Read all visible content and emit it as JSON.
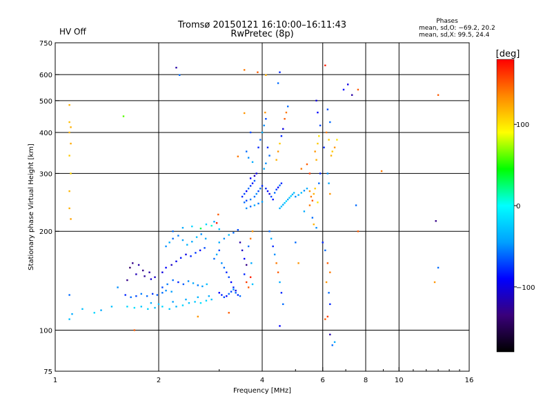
{
  "status": {
    "hv": "HV Off",
    "hv_color": "#e00000"
  },
  "header": {
    "title_line1": "Tromsø 20150121 16:10:00–16:11:43",
    "title_line2": "RwPretec (8p)"
  },
  "stats": {
    "label": "Phases",
    "line_o": "mean, sd,O: −69.2, 20.2",
    "line_x": "mean, sd,X:  99.5, 24.4"
  },
  "colorbar": {
    "unit": "[deg]",
    "ticks": [
      {
        "value": 100,
        "label": "100"
      },
      {
        "value": 0,
        "label": "0"
      },
      {
        "value": -100,
        "label": "−100"
      }
    ],
    "range": [
      -180,
      180
    ],
    "stops": [
      "#000000",
      "#3a007a",
      "#0000ff",
      "#00a0ff",
      "#00ffff",
      "#00ff00",
      "#ffff00",
      "#ff8800",
      "#ff0000"
    ]
  },
  "chart_data": {
    "type": "scatter",
    "title": "Tromsø 20150121 16:10:00–16:11:43",
    "subtitle": "RwPretec (8p)",
    "xlabel": "Frequency [MHz]",
    "ylabel": "Stationary phase Virtual Height [km]",
    "xscale": "log",
    "yscale": "log",
    "xlim": [
      1,
      16
    ],
    "ylim": [
      75,
      750
    ],
    "x_ticks": [
      1,
      2,
      4,
      6,
      8,
      10,
      16
    ],
    "x_tick_labels": [
      "1",
      "2",
      "4",
      "6",
      "8",
      "10",
      "16"
    ],
    "y_ticks": [
      75,
      100,
      200,
      300,
      400,
      500,
      600,
      750
    ],
    "y_tick_labels": [
      "75",
      "100",
      "200",
      "300",
      "400",
      "500",
      "600",
      "750"
    ],
    "grid_x": [
      2,
      4,
      6,
      8,
      10
    ],
    "grid_y": [
      100,
      200,
      300,
      400,
      500,
      600
    ],
    "color_var": "phase [deg]",
    "points": [
      [
        1.1,
        485,
        120
      ],
      [
        1.1,
        430,
        115
      ],
      [
        1.11,
        415,
        120
      ],
      [
        1.1,
        400,
        118
      ],
      [
        1.11,
        370,
        122
      ],
      [
        1.1,
        340,
        110
      ],
      [
        1.11,
        300,
        105
      ],
      [
        1.1,
        265,
        118
      ],
      [
        1.1,
        235,
        120
      ],
      [
        1.11,
        218,
        125
      ],
      [
        1.1,
        128,
        -60
      ],
      [
        1.12,
        112,
        -40
      ],
      [
        1.1,
        108,
        -30
      ],
      [
        1.2,
        116,
        -30
      ],
      [
        1.3,
        113,
        -20
      ],
      [
        1.36,
        115,
        -40
      ],
      [
        1.46,
        118,
        -30
      ],
      [
        1.52,
        135,
        -50
      ],
      [
        1.58,
        448,
        60
      ],
      [
        1.7,
        100,
        150
      ],
      [
        1.62,
        142,
        -130
      ],
      [
        1.65,
        155,
        -140
      ],
      [
        1.68,
        160,
        -130
      ],
      [
        1.75,
        158,
        -120
      ],
      [
        1.8,
        152,
        -130
      ],
      [
        1.88,
        150,
        -120
      ],
      [
        1.95,
        145,
        -110
      ],
      [
        1.72,
        148,
        -115
      ],
      [
        1.82,
        146,
        -125
      ],
      [
        1.9,
        143,
        -105
      ],
      [
        1.6,
        128,
        -80
      ],
      [
        1.66,
        126,
        -60
      ],
      [
        1.72,
        127,
        -70
      ],
      [
        1.78,
        129,
        -55
      ],
      [
        1.85,
        127,
        -60
      ],
      [
        1.92,
        129,
        -75
      ],
      [
        1.98,
        128,
        -65
      ],
      [
        2.05,
        130,
        -60
      ],
      [
        2.1,
        132,
        -50
      ],
      [
        2.18,
        131,
        -45
      ],
      [
        1.62,
        118,
        -20
      ],
      [
        1.7,
        117,
        -15
      ],
      [
        1.78,
        118,
        -25
      ],
      [
        1.86,
        116,
        -20
      ],
      [
        1.95,
        117,
        -30
      ],
      [
        2.05,
        118,
        -20
      ],
      [
        2.15,
        116,
        -25
      ],
      [
        2.25,
        118,
        -35
      ],
      [
        2.35,
        119,
        -20
      ],
      [
        2.45,
        121,
        -30
      ],
      [
        2.55,
        122,
        -25
      ],
      [
        2.65,
        121,
        -15
      ],
      [
        2.75,
        123,
        -20
      ],
      [
        2.85,
        124,
        -30
      ],
      [
        1.9,
        121,
        -40
      ],
      [
        2.0,
        120,
        -30
      ],
      [
        2.2,
        122,
        -45
      ],
      [
        2.4,
        124,
        -40
      ],
      [
        2.6,
        126,
        -35
      ],
      [
        2.8,
        127,
        -40
      ],
      [
        2.05,
        135,
        -70
      ],
      [
        2.12,
        138,
        -55
      ],
      [
        2.2,
        142,
        -60
      ],
      [
        2.28,
        140,
        -80
      ],
      [
        2.36,
        138,
        -65
      ],
      [
        2.44,
        141,
        -50
      ],
      [
        2.52,
        139,
        -40
      ],
      [
        2.6,
        137,
        -55
      ],
      [
        2.68,
        136,
        -45
      ],
      [
        2.76,
        138,
        -30
      ],
      [
        2.05,
        150,
        -100
      ],
      [
        2.1,
        155,
        -90
      ],
      [
        2.18,
        158,
        -110
      ],
      [
        2.25,
        162,
        -95
      ],
      [
        2.32,
        166,
        -85
      ],
      [
        2.4,
        170,
        -100
      ],
      [
        2.48,
        168,
        -80
      ],
      [
        2.56,
        172,
        -75
      ],
      [
        2.64,
        175,
        -90
      ],
      [
        2.72,
        178,
        -70
      ],
      [
        2.1,
        180,
        -50
      ],
      [
        2.15,
        185,
        -40
      ],
      [
        2.2,
        190,
        -60
      ],
      [
        2.28,
        194,
        -55
      ],
      [
        2.35,
        188,
        -45
      ],
      [
        2.42,
        182,
        -35
      ],
      [
        2.5,
        186,
        -40
      ],
      [
        2.58,
        192,
        -30
      ],
      [
        2.66,
        196,
        -50
      ],
      [
        2.74,
        190,
        -40
      ],
      [
        2.2,
        200,
        -60
      ],
      [
        2.35,
        205,
        -40
      ],
      [
        2.5,
        207,
        -20
      ],
      [
        2.65,
        204,
        30
      ],
      [
        2.75,
        210,
        -20
      ],
      [
        2.85,
        208,
        10
      ],
      [
        2.9,
        214,
        -40
      ],
      [
        2.95,
        212,
        170
      ],
      [
        2.98,
        225,
        150
      ],
      [
        3.0,
        203,
        -30
      ],
      [
        2.9,
        165,
        -60
      ],
      [
        2.95,
        170,
        -40
      ],
      [
        3.0,
        175,
        -70
      ],
      [
        3.05,
        160,
        -50
      ],
      [
        3.1,
        155,
        -60
      ],
      [
        3.15,
        150,
        -80
      ],
      [
        3.2,
        145,
        -70
      ],
      [
        3.25,
        140,
        -90
      ],
      [
        3.3,
        135,
        -80
      ],
      [
        3.35,
        132,
        -100
      ],
      [
        3.0,
        130,
        -90
      ],
      [
        3.05,
        128,
        -80
      ],
      [
        3.1,
        126,
        -70
      ],
      [
        3.15,
        127,
        -90
      ],
      [
        3.2,
        129,
        -60
      ],
      [
        3.25,
        131,
        -70
      ],
      [
        3.3,
        133,
        -50
      ],
      [
        3.35,
        130,
        -60
      ],
      [
        3.4,
        128,
        -80
      ],
      [
        3.45,
        127,
        -60
      ],
      [
        3.0,
        185,
        -40
      ],
      [
        3.1,
        190,
        -50
      ],
      [
        3.2,
        195,
        -30
      ],
      [
        3.3,
        198,
        -60
      ],
      [
        3.4,
        202,
        -70
      ],
      [
        3.45,
        185,
        -120
      ],
      [
        3.5,
        175,
        -110
      ],
      [
        3.55,
        165,
        -90
      ],
      [
        3.6,
        158,
        -130
      ],
      [
        3.55,
        148,
        -80
      ],
      [
        3.6,
        140,
        160
      ],
      [
        3.65,
        135,
        150
      ],
      [
        3.7,
        145,
        170
      ],
      [
        3.75,
        138,
        -30
      ],
      [
        3.72,
        160,
        -40
      ],
      [
        3.65,
        180,
        -60
      ],
      [
        3.7,
        190,
        140
      ],
      [
        3.75,
        200,
        130
      ],
      [
        2.6,
        110,
        130
      ],
      [
        3.2,
        113,
        150
      ],
      [
        3.5,
        255,
        -80
      ],
      [
        3.55,
        260,
        -70
      ],
      [
        3.6,
        265,
        -90
      ],
      [
        3.65,
        270,
        -60
      ],
      [
        3.7,
        275,
        -75
      ],
      [
        3.75,
        280,
        -85
      ],
      [
        3.8,
        285,
        -65
      ],
      [
        3.55,
        245,
        -60
      ],
      [
        3.6,
        248,
        -70
      ],
      [
        3.7,
        250,
        -55
      ],
      [
        3.8,
        255,
        -60
      ],
      [
        3.85,
        260,
        -50
      ],
      [
        3.9,
        265,
        -70
      ],
      [
        3.95,
        270,
        -60
      ],
      [
        4.0,
        275,
        -80
      ],
      [
        3.6,
        235,
        -50
      ],
      [
        3.7,
        238,
        -60
      ],
      [
        3.8,
        240,
        -40
      ],
      [
        3.9,
        243,
        -55
      ],
      [
        4.0,
        246,
        -45
      ],
      [
        3.7,
        290,
        -90
      ],
      [
        3.8,
        295,
        -110
      ],
      [
        3.85,
        300,
        -100
      ],
      [
        3.9,
        360,
        -80
      ],
      [
        3.95,
        380,
        -60
      ],
      [
        4.0,
        400,
        -40
      ],
      [
        4.05,
        420,
        -50
      ],
      [
        4.1,
        440,
        -70
      ],
      [
        4.08,
        460,
        130
      ],
      [
        3.88,
        610,
        150
      ],
      [
        3.6,
        350,
        -60
      ],
      [
        3.65,
        335,
        -50
      ],
      [
        3.75,
        325,
        -40
      ],
      [
        3.4,
        338,
        140
      ],
      [
        3.55,
        458,
        130
      ],
      [
        3.7,
        400,
        -70
      ],
      [
        4.15,
        360,
        -80
      ],
      [
        4.2,
        340,
        -60
      ],
      [
        4.1,
        322,
        -50
      ],
      [
        4.05,
        310,
        -40
      ],
      [
        4.1,
        270,
        -80
      ],
      [
        4.15,
        265,
        -90
      ],
      [
        4.2,
        260,
        -100
      ],
      [
        4.25,
        255,
        -70
      ],
      [
        4.3,
        250,
        -85
      ],
      [
        4.35,
        262,
        -60
      ],
      [
        4.4,
        268,
        -75
      ],
      [
        4.45,
        272,
        -90
      ],
      [
        4.5,
        276,
        -60
      ],
      [
        4.55,
        280,
        -80
      ],
      [
        4.5,
        235,
        -40
      ],
      [
        4.55,
        238,
        -30
      ],
      [
        4.6,
        241,
        -40
      ],
      [
        4.65,
        244,
        -30
      ],
      [
        4.7,
        247,
        -20
      ],
      [
        4.75,
        250,
        -40
      ],
      [
        4.8,
        253,
        -30
      ],
      [
        4.85,
        256,
        -20
      ],
      [
        4.9,
        259,
        -40
      ],
      [
        4.95,
        262,
        -30
      ],
      [
        4.4,
        330,
        120
      ],
      [
        4.45,
        350,
        130
      ],
      [
        4.5,
        370,
        110
      ],
      [
        4.55,
        390,
        -80
      ],
      [
        4.6,
        410,
        -100
      ],
      [
        4.65,
        440,
        150
      ],
      [
        4.7,
        460,
        140
      ],
      [
        4.75,
        480,
        -60
      ],
      [
        4.5,
        610,
        -80
      ],
      [
        4.45,
        565,
        -60
      ],
      [
        4.2,
        200,
        -60
      ],
      [
        4.25,
        190,
        -40
      ],
      [
        4.3,
        180,
        -80
      ],
      [
        4.35,
        170,
        -50
      ],
      [
        4.4,
        160,
        140
      ],
      [
        4.45,
        150,
        150
      ],
      [
        4.5,
        140,
        -40
      ],
      [
        4.55,
        130,
        -80
      ],
      [
        4.6,
        120,
        -60
      ],
      [
        4.5,
        103,
        -90
      ],
      [
        5.0,
        255,
        -50
      ],
      [
        5.1,
        258,
        -40
      ],
      [
        5.2,
        262,
        -30
      ],
      [
        5.3,
        266,
        -50
      ],
      [
        5.4,
        270,
        -40
      ],
      [
        5.5,
        265,
        130
      ],
      [
        5.55,
        255,
        140
      ],
      [
        5.6,
        248,
        150
      ],
      [
        5.65,
        260,
        120
      ],
      [
        5.7,
        270,
        110
      ],
      [
        5.8,
        245,
        100
      ],
      [
        5.85,
        280,
        -60
      ],
      [
        5.9,
        300,
        -80
      ],
      [
        5.75,
        330,
        120
      ],
      [
        5.7,
        350,
        130
      ],
      [
        5.8,
        370,
        110
      ],
      [
        5.85,
        390,
        100
      ],
      [
        5.9,
        420,
        -70
      ],
      [
        5.8,
        460,
        -90
      ],
      [
        5.75,
        500,
        -100
      ],
      [
        5.2,
        310,
        140
      ],
      [
        5.4,
        320,
        150
      ],
      [
        5.5,
        300,
        160
      ],
      [
        5.6,
        220,
        -60
      ],
      [
        5.65,
        210,
        120
      ],
      [
        5.75,
        205,
        -50
      ],
      [
        5.3,
        230,
        -40
      ],
      [
        5.5,
        240,
        140
      ],
      [
        5.0,
        185,
        -60
      ],
      [
        5.1,
        160,
        130
      ],
      [
        6.1,
        640,
        170
      ],
      [
        6.2,
        470,
        -70
      ],
      [
        6.3,
        430,
        -60
      ],
      [
        6.15,
        400,
        140
      ],
      [
        6.25,
        380,
        110
      ],
      [
        6.05,
        360,
        -80
      ],
      [
        6.35,
        340,
        120
      ],
      [
        6.2,
        300,
        -50
      ],
      [
        6.25,
        280,
        -40
      ],
      [
        6.3,
        260,
        130
      ],
      [
        6.4,
        350,
        110
      ],
      [
        6.5,
        360,
        130
      ],
      [
        6.6,
        380,
        100
      ],
      [
        6.9,
        540,
        -90
      ],
      [
        7.1,
        560,
        -100
      ],
      [
        7.3,
        520,
        -120
      ],
      [
        7.6,
        540,
        150
      ],
      [
        7.6,
        200,
        150
      ],
      [
        7.5,
        240,
        -60
      ],
      [
        8.9,
        305,
        140
      ],
      [
        6.0,
        185,
        -80
      ],
      [
        6.1,
        175,
        -60
      ],
      [
        6.2,
        160,
        150
      ],
      [
        6.3,
        150,
        140
      ],
      [
        6.15,
        140,
        130
      ],
      [
        6.25,
        130,
        -60
      ],
      [
        6.3,
        120,
        -80
      ],
      [
        6.2,
        110,
        160
      ],
      [
        6.1,
        108,
        150
      ],
      [
        6.3,
        97,
        -120
      ],
      [
        6.5,
        92,
        -40
      ],
      [
        6.4,
        90,
        -60
      ],
      [
        13.0,
        520,
        150
      ],
      [
        12.8,
        215,
        -130
      ],
      [
        13.0,
        155,
        -60
      ],
      [
        12.7,
        140,
        130
      ],
      [
        2.25,
        630,
        -120
      ],
      [
        3.55,
        620,
        140
      ],
      [
        2.3,
        598,
        -60
      ],
      [
        4.1,
        598,
        120
      ]
    ]
  }
}
